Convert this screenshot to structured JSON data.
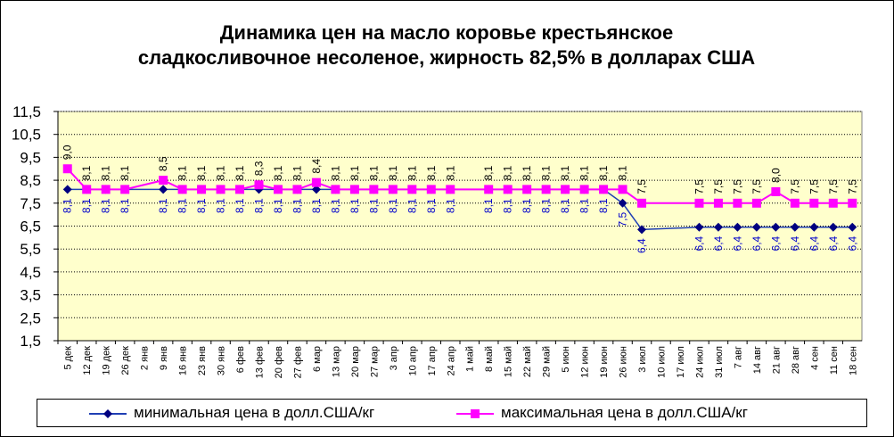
{
  "chart_data": {
    "type": "line",
    "title_lines": [
      "Динамика цен на масло коровье крестьянское",
      "сладкосливочное несоленое, жирность  82,5%  в долларах США"
    ],
    "xlabel": "",
    "ylabel": "",
    "ylim": [
      1.5,
      11.5
    ],
    "y_ticks": [
      "1,5",
      "2,5",
      "3,5",
      "4,5",
      "5,5",
      "6,5",
      "7,5",
      "8,5",
      "9,5",
      "10,5",
      "11,5"
    ],
    "y_tick_values": [
      1.5,
      2.5,
      3.5,
      4.5,
      5.5,
      6.5,
      7.5,
      8.5,
      9.5,
      10.5,
      11.5
    ],
    "grid": true,
    "legend_position": "bottom",
    "plot_background": "#ffffcc",
    "categories": [
      "5 дек",
      "12 дек",
      "19 дек",
      "26 дек",
      "2 янв",
      "9 янв",
      "16 янв",
      "23 янв",
      "30 янв",
      "6 фев",
      "13 фев",
      "20 фев",
      "27 фев",
      "6 мар",
      "13 мар",
      "20 мар",
      "27 мар",
      "3 апр",
      "10 апр",
      "17 апр",
      "24 апр",
      "1 май",
      "8 май",
      "15 май",
      "22 май",
      "29 май",
      "5 июн",
      "12 июн",
      "19 июн",
      "26 июн",
      "3 июл",
      "10 июл",
      "17 июл",
      "24 июл",
      "31 июл",
      "7 авг",
      "14 авг",
      "21 авг",
      "28 авг",
      "4 сен",
      "11 сен",
      "18 сен"
    ],
    "series": [
      {
        "name": "минимальная  цена  в долл.США/кг",
        "color": "#1f3fb4",
        "marker": "diamond",
        "marker_color": "#000080",
        "values": [
          8.1,
          8.1,
          8.1,
          8.1,
          null,
          8.1,
          8.1,
          8.1,
          8.1,
          8.1,
          8.1,
          8.1,
          8.1,
          8.1,
          8.1,
          8.1,
          8.1,
          8.1,
          8.1,
          8.1,
          8.1,
          null,
          8.1,
          8.1,
          8.1,
          8.1,
          8.1,
          8.1,
          8.1,
          7.5,
          6.35,
          null,
          null,
          6.45,
          6.45,
          6.45,
          6.45,
          6.45,
          6.45,
          6.45,
          6.45,
          6.45
        ],
        "labels": [
          "8,1",
          "8,1",
          "8,1",
          "8,1",
          null,
          "8,1",
          "8,1",
          "8,1",
          "8,1",
          "8,1",
          "8,1",
          "8,1",
          "8,1",
          "8,1",
          "8,1",
          "8,1",
          "8,1",
          "8,1",
          "8,1",
          "8,1",
          "8,1",
          null,
          "8,1",
          "8,1",
          "8,1",
          "8,1",
          "8,1",
          "8,1",
          "8,1",
          "7,5",
          "6,4",
          null,
          null,
          "6,4",
          "6,4",
          "6,4",
          "6,4",
          "6,4",
          "6,4",
          "6,4",
          "6,4",
          "6,4"
        ]
      },
      {
        "name": "максимальная  цена  в долл.США/кг",
        "color": "#ff00ff",
        "marker": "square",
        "marker_color": "#ff00ff",
        "values": [
          9.0,
          8.1,
          8.1,
          8.1,
          null,
          8.5,
          8.1,
          8.1,
          8.1,
          8.1,
          8.3,
          8.1,
          8.1,
          8.4,
          8.1,
          8.1,
          8.1,
          8.1,
          8.1,
          8.1,
          8.1,
          null,
          8.1,
          8.1,
          8.1,
          8.1,
          8.1,
          8.1,
          8.1,
          8.1,
          7.5,
          null,
          null,
          7.5,
          7.5,
          7.5,
          7.5,
          8.0,
          7.5,
          7.5,
          7.5,
          7.5
        ],
        "labels": [
          "9,0",
          "8,1",
          "8,1",
          "8,1",
          null,
          "8,5",
          "8,1",
          "8,1",
          "8,1",
          "8,1",
          "8,3",
          "8,1",
          "8,1",
          "8,4",
          "8,1",
          "8,1",
          "8,1",
          "8,1",
          "8,1",
          "8,1",
          "8,1",
          null,
          "8,1",
          "8,1",
          "8,1",
          "8,1",
          "8,1",
          "8,1",
          "8,1",
          "8,1",
          "7,5",
          null,
          null,
          "7,5",
          "7,5",
          "7,5",
          "7,5",
          "8,0",
          "7,5",
          "7,5",
          "7,5",
          "7,5"
        ]
      }
    ]
  }
}
